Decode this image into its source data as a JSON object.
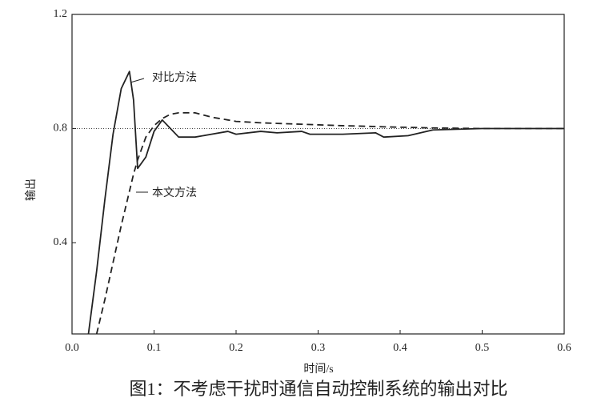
{
  "chart_data": {
    "type": "line",
    "caption": "图1：不考虑干扰时通信自动控制系统的输出对比",
    "xlabel": "时间/s",
    "ylabel": "输出",
    "x": [
      0.02,
      0.03,
      0.04,
      0.05,
      0.06,
      0.07,
      0.075,
      0.08,
      0.09,
      0.1,
      0.11,
      0.12,
      0.13,
      0.15,
      0.17,
      0.19,
      0.2,
      0.23,
      0.25,
      0.28,
      0.29,
      0.33,
      0.37,
      0.38,
      0.41,
      0.44,
      0.5,
      0.6
    ],
    "series": [
      {
        "name": "对比方法",
        "color": "#222222",
        "dash": "solid",
        "values": [
          0.08,
          0.3,
          0.55,
          0.78,
          0.94,
          1.0,
          0.9,
          0.66,
          0.7,
          0.79,
          0.83,
          0.8,
          0.77,
          0.77,
          0.78,
          0.79,
          0.78,
          0.79,
          0.785,
          0.79,
          0.78,
          0.78,
          0.785,
          0.77,
          0.775,
          0.795,
          0.8,
          0.8
        ]
      },
      {
        "name": "本文方法",
        "color": "#222222",
        "dash": "dashed",
        "values": [
          null,
          0.08,
          0.2,
          0.33,
          0.46,
          0.58,
          0.64,
          0.69,
          0.77,
          0.81,
          0.835,
          0.85,
          0.855,
          0.855,
          0.84,
          0.83,
          0.825,
          0.82,
          0.818,
          0.815,
          0.814,
          0.81,
          0.807,
          0.806,
          0.804,
          0.802,
          0.8,
          0.8
        ]
      }
    ],
    "reference_line": 0.8,
    "xlim": [
      0,
      0.6
    ],
    "xticks": [
      {
        "value": 0,
        "label": "0.0"
      },
      0.1,
      0.2,
      0.3,
      0.4,
      0.5,
      0.6
    ],
    "ylim": [
      0.08,
      1.2
    ],
    "yticks": [
      0.4,
      0.8,
      1.2
    ]
  }
}
